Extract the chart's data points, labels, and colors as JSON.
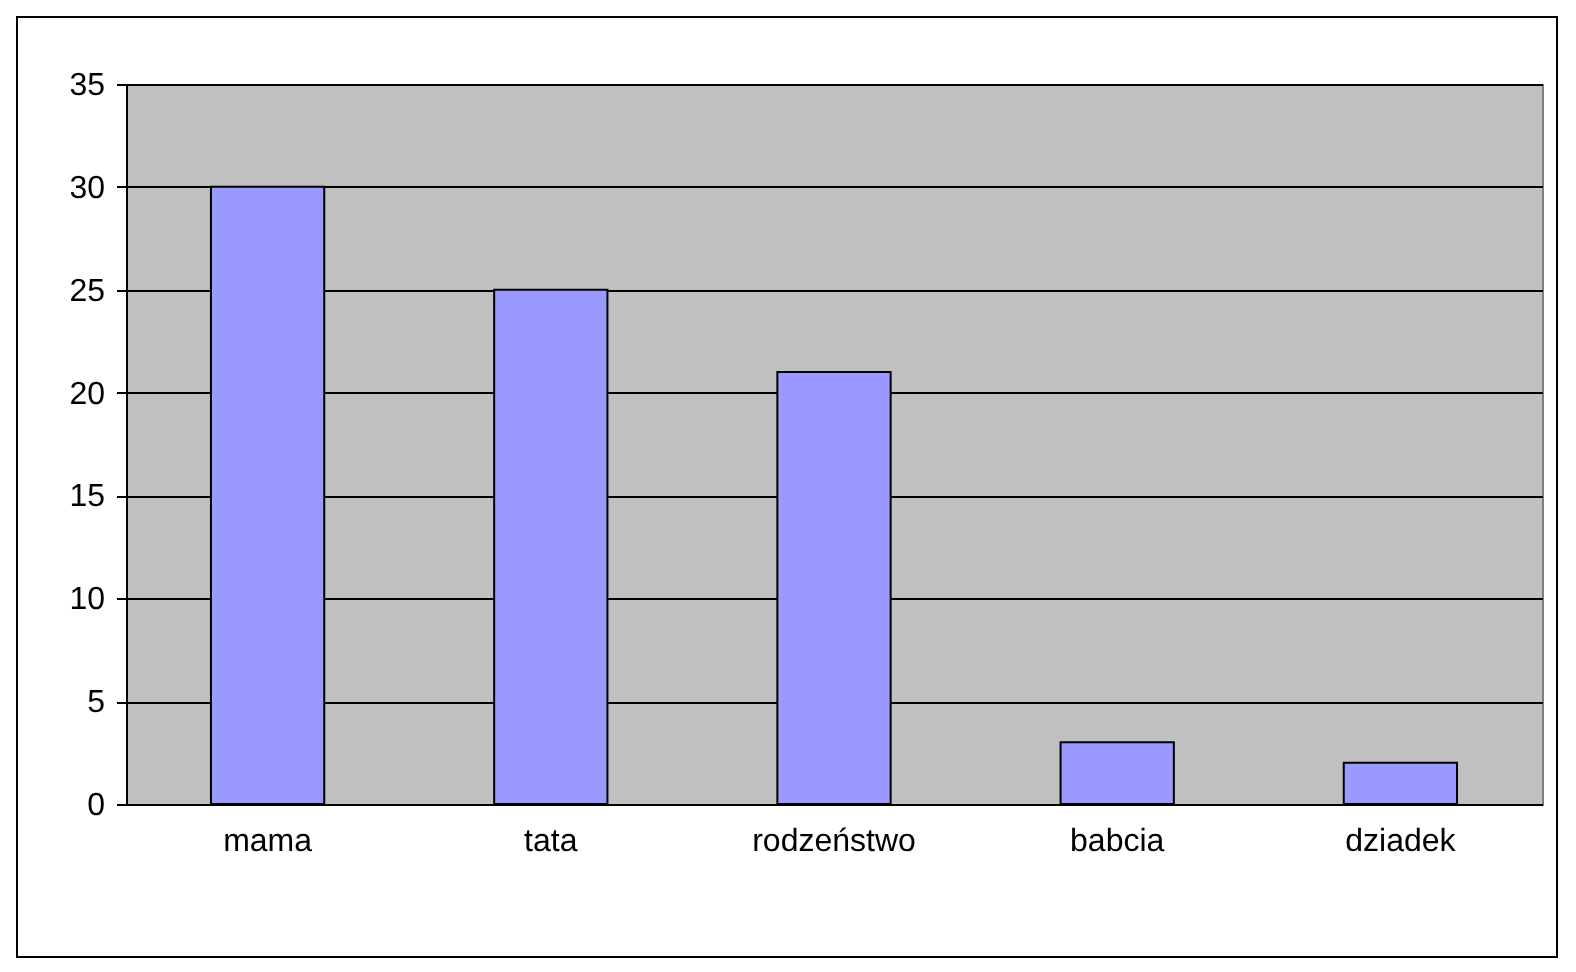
{
  "chart_data": {
    "type": "bar",
    "categories": [
      "mama",
      "tata",
      "rodzeństwo",
      "babcia",
      "dziadek"
    ],
    "values": [
      30,
      25,
      21,
      3,
      2
    ],
    "color": "#9999ff",
    "ylim": [
      0,
      35
    ],
    "yticks": [
      0,
      5,
      10,
      15,
      20,
      25,
      30,
      35
    ],
    "grid": "y"
  }
}
